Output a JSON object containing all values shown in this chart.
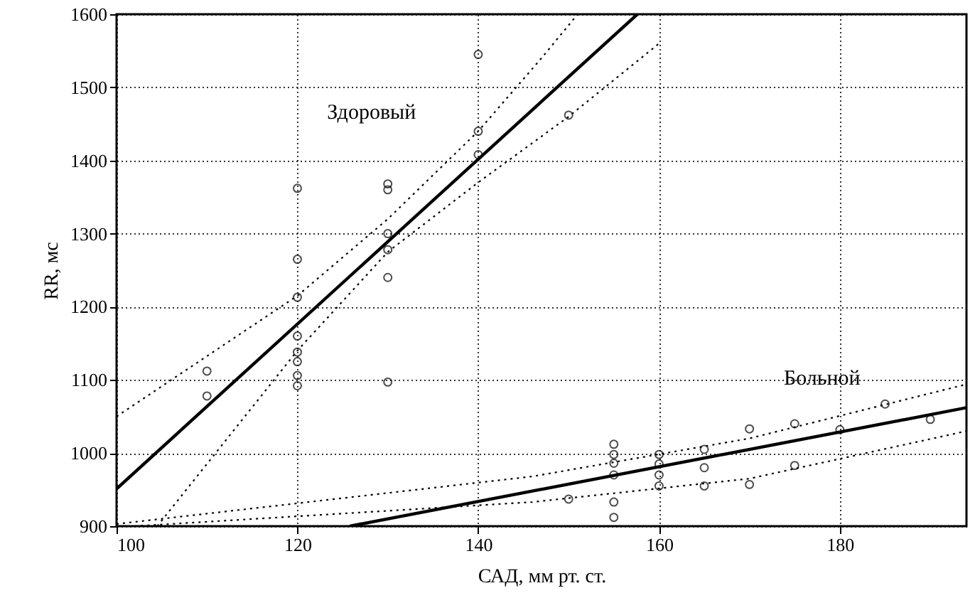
{
  "chart_data": {
    "type": "scatter",
    "xlabel": "САД, мм рт. ст.",
    "ylabel": "RR, мс",
    "xlim": [
      100,
      194
    ],
    "ylim": [
      900,
      1600
    ],
    "xticks": [
      100,
      120,
      140,
      160,
      180
    ],
    "yticks": [
      900,
      1000,
      1100,
      1200,
      1300,
      1400,
      1500,
      1600
    ],
    "grid": true,
    "legend": false,
    "marker": "circle",
    "series": [
      {
        "name": "Здоровый",
        "color": "#000000",
        "x": [
          110,
          110,
          120,
          120,
          120,
          120,
          120,
          120,
          120,
          120,
          130,
          130,
          130,
          130,
          130,
          130,
          140,
          140,
          140,
          150
        ],
        "values": [
          1112,
          1078,
          1362,
          1265,
          1213,
          1160,
          1138,
          1125,
          1106,
          1092,
          1368,
          1360,
          1300,
          1278,
          1240,
          1097,
          1545,
          1440,
          1408,
          1462
        ]
      },
      {
        "name": "Больной",
        "color": "#000000",
        "x": [
          150,
          155,
          155,
          155,
          155,
          155,
          155,
          160,
          160,
          160,
          160,
          165,
          165,
          165,
          170,
          170,
          175,
          175,
          180,
          185,
          190
        ],
        "values": [
          937,
          1012,
          998,
          986,
          970,
          933,
          912,
          998,
          985,
          970,
          955,
          1005,
          980,
          955,
          1033,
          957,
          1040,
          983,
          1032,
          1067,
          1046
        ]
      },
      {
        "type": "line",
        "color": "#000000",
        "line_style": "solid",
        "marker": "none",
        "x": [
          100,
          157.6
        ],
        "values": [
          951,
          1600
        ]
      },
      {
        "type": "line",
        "color": "#000000",
        "line_style": "dotted",
        "marker": "none",
        "x": [
          100,
          120,
          130,
          140,
          147,
          151
        ],
        "values": [
          1050,
          1215,
          1320,
          1440,
          1540,
          1600
        ]
      },
      {
        "type": "line",
        "color": "#000000",
        "line_style": "dotted",
        "marker": "none",
        "x": [
          104.5,
          120,
          130,
          140,
          150,
          160
        ],
        "values": [
          900,
          1140,
          1275,
          1370,
          1460,
          1560
        ]
      },
      {
        "type": "line",
        "color": "#000000",
        "line_style": "solid",
        "marker": "none",
        "x": [
          125.8,
          194
        ],
        "values": [
          900,
          1062
        ]
      },
      {
        "type": "line",
        "color": "#000000",
        "line_style": "dotted",
        "marker": "none",
        "x": [
          100,
          146,
          170,
          194
        ],
        "values": [
          903,
          968,
          1020,
          1094
        ]
      },
      {
        "type": "line",
        "color": "#000000",
        "line_style": "dotted",
        "marker": "none",
        "x": [
          102,
          146,
          170,
          194
        ],
        "values": [
          900,
          933,
          965,
          1030
        ]
      }
    ]
  }
}
